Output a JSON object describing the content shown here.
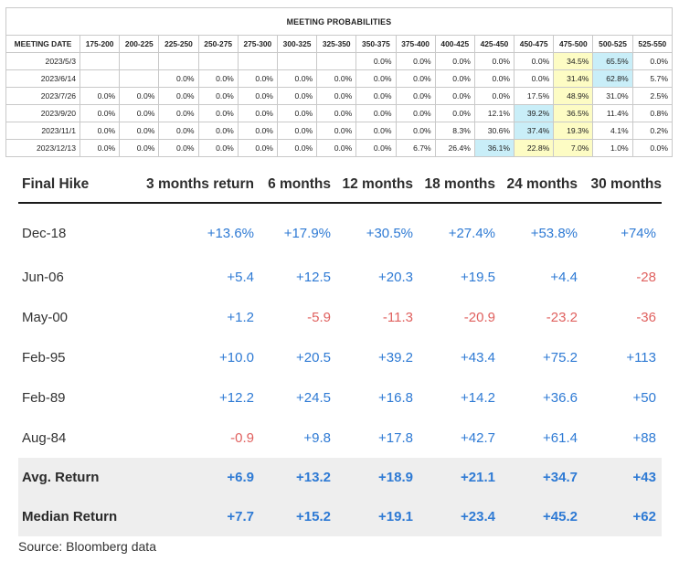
{
  "meeting_probabilities": {
    "title": "MEETING PROBABILITIES",
    "columns": [
      "MEETING DATE",
      "175-200",
      "200-225",
      "225-250",
      "250-275",
      "275-300",
      "300-325",
      "325-350",
      "350-375",
      "375-400",
      "400-425",
      "425-450",
      "450-475",
      "475-500",
      "500-525",
      "525-550"
    ],
    "rows": [
      {
        "cells": [
          "2023/5/3",
          "",
          "",
          "",
          "",
          "",
          "",
          "",
          "0.0%",
          "0.0%",
          "0.0%",
          "0.0%",
          "0.0%",
          "34.5%",
          "65.5%",
          "0.0%"
        ],
        "highlights": [
          "",
          "",
          "",
          "",
          "",
          "",
          "",
          "",
          "",
          "",
          "",
          "",
          "y",
          "b",
          ""
        ]
      },
      {
        "cells": [
          "2023/6/14",
          "",
          "",
          "0.0%",
          "0.0%",
          "0.0%",
          "0.0%",
          "0.0%",
          "0.0%",
          "0.0%",
          "0.0%",
          "0.0%",
          "0.0%",
          "31.4%",
          "62.8%",
          "5.7%"
        ],
        "highlights": [
          "",
          "",
          "",
          "",
          "",
          "",
          "",
          "",
          "",
          "",
          "",
          "",
          "y",
          "b",
          ""
        ]
      },
      {
        "cells": [
          "2023/7/26",
          "0.0%",
          "0.0%",
          "0.0%",
          "0.0%",
          "0.0%",
          "0.0%",
          "0.0%",
          "0.0%",
          "0.0%",
          "0.0%",
          "0.0%",
          "17.5%",
          "48.9%",
          "31.0%",
          "2.5%"
        ],
        "highlights": [
          "",
          "",
          "",
          "",
          "",
          "",
          "",
          "",
          "",
          "",
          "",
          "",
          "y",
          "",
          ""
        ]
      },
      {
        "cells": [
          "2023/9/20",
          "0.0%",
          "0.0%",
          "0.0%",
          "0.0%",
          "0.0%",
          "0.0%",
          "0.0%",
          "0.0%",
          "0.0%",
          "0.0%",
          "12.1%",
          "39.2%",
          "36.5%",
          "11.4%",
          "0.8%"
        ],
        "highlights": [
          "",
          "",
          "",
          "",
          "",
          "",
          "",
          "",
          "",
          "",
          "",
          "b",
          "y",
          "",
          ""
        ]
      },
      {
        "cells": [
          "2023/11/1",
          "0.0%",
          "0.0%",
          "0.0%",
          "0.0%",
          "0.0%",
          "0.0%",
          "0.0%",
          "0.0%",
          "0.0%",
          "8.3%",
          "30.6%",
          "37.4%",
          "19.3%",
          "4.1%",
          "0.2%"
        ],
        "highlights": [
          "",
          "",
          "",
          "",
          "",
          "",
          "",
          "",
          "",
          "",
          "",
          "b",
          "y",
          "",
          ""
        ]
      },
      {
        "cells": [
          "2023/12/13",
          "0.0%",
          "0.0%",
          "0.0%",
          "0.0%",
          "0.0%",
          "0.0%",
          "0.0%",
          "0.0%",
          "6.7%",
          "26.4%",
          "36.1%",
          "22.8%",
          "7.0%",
          "1.0%",
          "0.0%"
        ],
        "highlights": [
          "",
          "",
          "",
          "",
          "",
          "",
          "",
          "",
          "",
          "",
          "b",
          "y",
          "y",
          "",
          ""
        ]
      }
    ]
  },
  "returns": {
    "headers": [
      "Final Hike",
      "3 months return",
      "6 months",
      "12 months",
      "18 months",
      "24 months",
      "30 months"
    ],
    "rows": [
      {
        "label": "Dec-18",
        "values": [
          "+13.6%",
          "+17.9%",
          "+30.5%",
          "+27.4%",
          "+53.8%",
          "+74%"
        ]
      },
      {
        "label": "Jun-06",
        "values": [
          "+5.4",
          "+12.5",
          "+20.3",
          "+19.5",
          "+4.4",
          "-28"
        ]
      },
      {
        "label": "May-00",
        "values": [
          "+1.2",
          "-5.9",
          "-11.3",
          "-20.9",
          "-23.2",
          "-36"
        ]
      },
      {
        "label": "Feb-95",
        "values": [
          "+10.0",
          "+20.5",
          "+39.2",
          "+43.4",
          "+75.2",
          "+113"
        ]
      },
      {
        "label": "Feb-89",
        "values": [
          "+12.2",
          "+24.5",
          "+16.8",
          "+14.2",
          "+36.6",
          "+50"
        ]
      },
      {
        "label": "Aug-84",
        "values": [
          "-0.9",
          "+9.8",
          "+17.8",
          "+42.7",
          "+61.4",
          "+88"
        ]
      }
    ],
    "summary_rows": [
      {
        "label": "Avg. Return",
        "values": [
          "+6.9",
          "+13.2",
          "+18.9",
          "+21.1",
          "+34.7",
          "+43"
        ]
      },
      {
        "label": "Median Return",
        "values": [
          "+7.7",
          "+15.2",
          "+19.1",
          "+23.4",
          "+45.2",
          "+62"
        ]
      }
    ],
    "colors": {
      "positive": "#2e7ad4",
      "negative": "#e0615f",
      "summary_bg": "#eeeeee"
    }
  },
  "source": "Source: Bloomberg data"
}
